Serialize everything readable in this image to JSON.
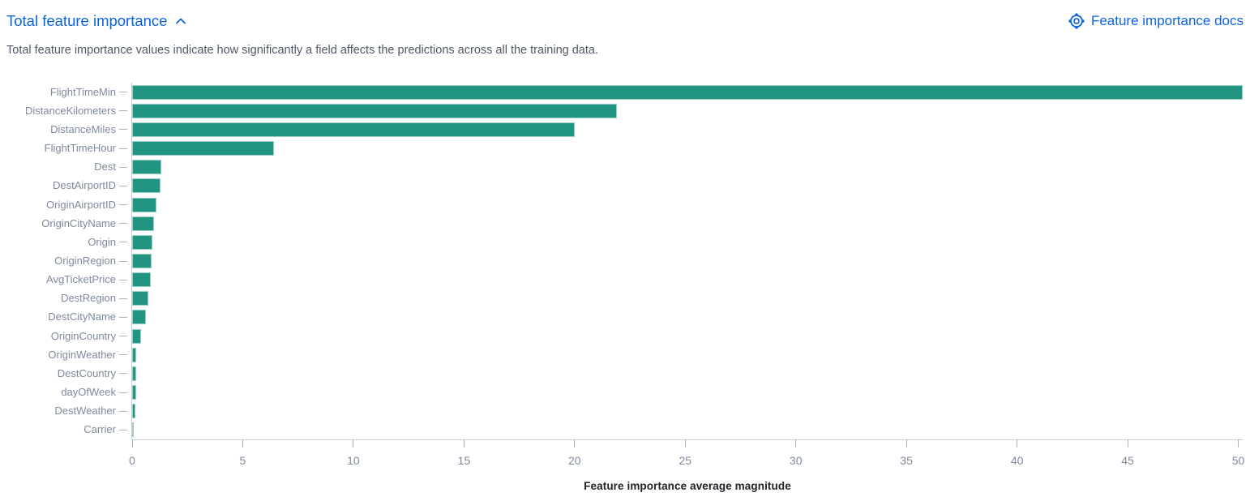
{
  "header": {
    "title": "Total feature importance",
    "collapse_icon": "chevron-up",
    "docs_label": "Feature importance docs",
    "docs_icon": "lifebuoy-help",
    "link_color": "#0b64dd"
  },
  "description": {
    "text": "Total feature importance values indicate how significantly a field affects the predictions across all the training data."
  },
  "chart_data": {
    "type": "bar",
    "orientation": "horizontal",
    "title": "",
    "xlabel": "Feature importance average magnitude",
    "ylabel": "",
    "categories": [
      "FlightTimeMin",
      "DistanceKilometers",
      "DistanceMiles",
      "FlightTimeHour",
      "Dest",
      "DestAirportID",
      "OriginAirportID",
      "OriginCityName",
      "Origin",
      "OriginRegion",
      "AvgTicketPrice",
      "DestRegion",
      "DestCityName",
      "OriginCountry",
      "OriginWeather",
      "DestCountry",
      "dayOfWeek",
      "DestWeather",
      "Carrier"
    ],
    "values": [
      50.2,
      21.9,
      20.0,
      6.4,
      1.33,
      1.3,
      1.09,
      0.98,
      0.93,
      0.88,
      0.83,
      0.73,
      0.61,
      0.4,
      0.19,
      0.19,
      0.17,
      0.15,
      0.05
    ],
    "xlim": [
      0,
      50.2
    ],
    "xticks": [
      0,
      5,
      10,
      15,
      20,
      25,
      30,
      35,
      40,
      45,
      50
    ],
    "bar_color": "#229582",
    "axis_label_color": "#7e8a9e",
    "grid": false,
    "legend": "none"
  }
}
